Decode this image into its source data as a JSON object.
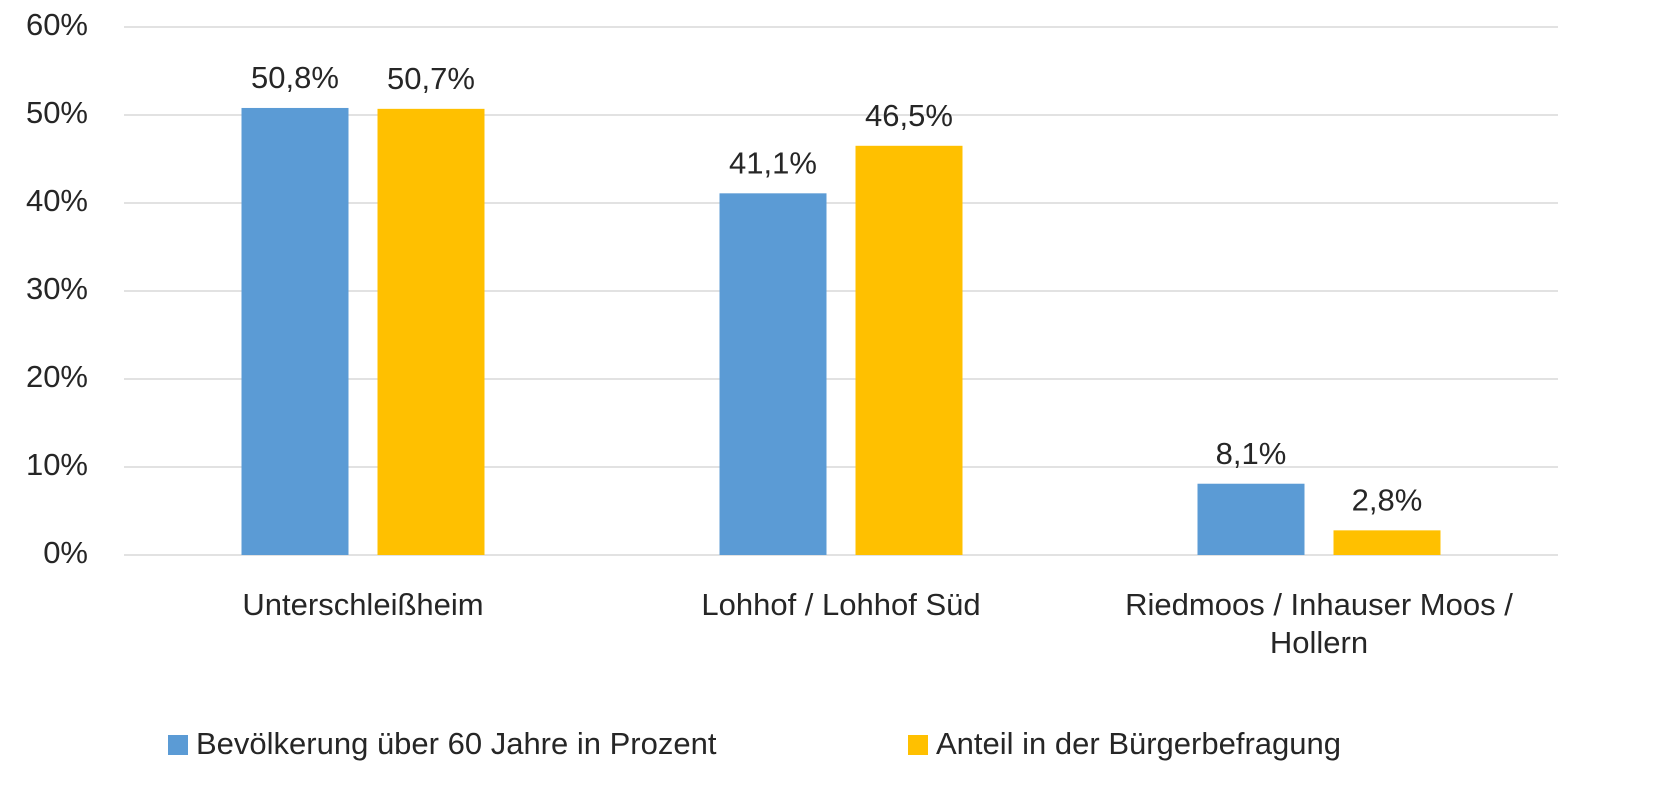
{
  "chart_data": {
    "type": "bar",
    "categories": [
      "Unterschleißheim",
      "Lohhof / Lohhof Süd",
      "Riedmoos / Inhauser Moos / Hollern"
    ],
    "series": [
      {
        "name": "Bevölkerung über 60 Jahre in Prozent",
        "color": "#5b9bd5",
        "values": [
          50.8,
          41.1,
          8.1
        ],
        "value_labels": [
          "50,8%",
          "41,1%",
          "8,1%"
        ]
      },
      {
        "name": "Anteil in der Bürgerbefragung",
        "color": "#ffc000",
        "values": [
          50.7,
          46.5,
          2.8
        ],
        "value_labels": [
          "50,7%",
          "46,5%",
          "2,8%"
        ]
      }
    ],
    "ylim": [
      0,
      60
    ],
    "yticks": [
      {
        "value": 0,
        "label": "0%"
      },
      {
        "value": 10,
        "label": "10%"
      },
      {
        "value": 20,
        "label": "20%"
      },
      {
        "value": 30,
        "label": "30%"
      },
      {
        "value": 40,
        "label": "40%"
      },
      {
        "value": 50,
        "label": "50%"
      },
      {
        "value": 60,
        "label": "60%"
      }
    ],
    "grid": true,
    "legend": "bottom"
  }
}
